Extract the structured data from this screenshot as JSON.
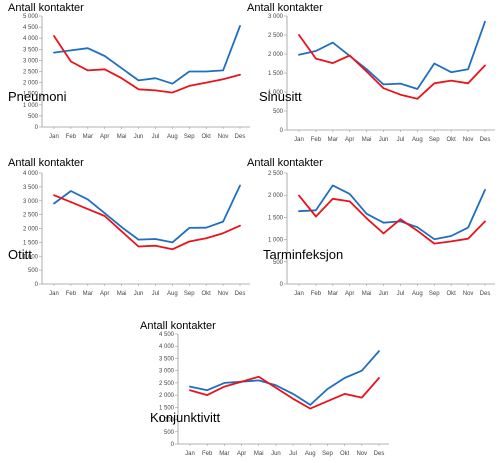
{
  "colors": {
    "series_a": "#1f6fc1",
    "series_b": "#e8141b",
    "axis": "#9a9a9a"
  },
  "chart_data": [
    {
      "type": "line",
      "title": "Pneumoni",
      "ylabel": "Antall kontakter",
      "x": [
        "Jan",
        "Feb",
        "Mar",
        "Apr",
        "Mai",
        "Jun",
        "Jul",
        "Aug",
        "Sep",
        "Okt",
        "Nov",
        "Des"
      ],
      "ylim": [
        0,
        5000
      ],
      "yticks": [
        "0",
        "500",
        "1 000",
        "1 500",
        "2 000",
        "2 500",
        "3 000",
        "3 500",
        "4 000",
        "4 500",
        "5 000"
      ],
      "grid": false,
      "series": [
        {
          "color": "#1f6fc1",
          "values": [
            3350,
            3450,
            3550,
            3200,
            2650,
            2100,
            2200,
            1950,
            2500,
            2500,
            2550,
            4550
          ]
        },
        {
          "color": "#e8141b",
          "values": [
            4100,
            2950,
            2550,
            2600,
            2200,
            1700,
            1650,
            1550,
            1850,
            2000,
            2150,
            2350
          ]
        }
      ]
    },
    {
      "type": "line",
      "title": "Sinusitt",
      "ylabel": "Antall kontakter",
      "x": [
        "Jan",
        "Feb",
        "Mar",
        "Apr",
        "Mai",
        "Jun",
        "Jul",
        "Aug",
        "Sep",
        "Okt",
        "Nov",
        "Des"
      ],
      "ylim": [
        0,
        3000
      ],
      "yticks": [
        "0",
        "500",
        "1 000",
        "1 500",
        "2 000",
        "2 500",
        "3 000"
      ],
      "grid": false,
      "series": [
        {
          "color": "#1f6fc1",
          "values": [
            1980,
            2080,
            2300,
            1950,
            1600,
            1200,
            1220,
            1080,
            1750,
            1520,
            1600,
            2850
          ]
        },
        {
          "color": "#e8141b",
          "values": [
            2500,
            1880,
            1760,
            1960,
            1540,
            1100,
            930,
            820,
            1230,
            1300,
            1230,
            1700
          ]
        }
      ]
    },
    {
      "type": "line",
      "title": "Otitt",
      "ylabel": "Antall kontakter",
      "x": [
        "Jan",
        "Feb",
        "Mar",
        "Apr",
        "Mai",
        "Jun",
        "Jul",
        "Aug",
        "Sep",
        "Okt",
        "Nov",
        "Des"
      ],
      "ylim": [
        0,
        4000
      ],
      "yticks": [
        "0",
        "500",
        "1 000",
        "1 500",
        "2 000",
        "2 500",
        "3 000",
        "3 500",
        "4 000"
      ],
      "grid": false,
      "series": [
        {
          "color": "#1f6fc1",
          "values": [
            2900,
            3350,
            3050,
            2550,
            2050,
            1600,
            1620,
            1500,
            2020,
            2030,
            2250,
            3550
          ]
        },
        {
          "color": "#e8141b",
          "values": [
            3200,
            2950,
            2700,
            2450,
            1900,
            1350,
            1380,
            1250,
            1530,
            1650,
            1830,
            2100
          ]
        }
      ]
    },
    {
      "type": "line",
      "title": "Tarminfeksjon",
      "ylabel": "Antall kontakter",
      "x": [
        "Jan",
        "Feb",
        "Mar",
        "Apr",
        "Mai",
        "Jun",
        "Jul",
        "Aug",
        "Sep",
        "Okt",
        "Nov",
        "Des"
      ],
      "ylim": [
        0,
        2500
      ],
      "yticks": [
        "0",
        "500",
        "1 000",
        "1 500",
        "2 000",
        "2 500"
      ],
      "grid": false,
      "series": [
        {
          "color": "#1f6fc1",
          "values": [
            1640,
            1660,
            2220,
            2030,
            1580,
            1380,
            1410,
            1280,
            1010,
            1080,
            1270,
            2120
          ]
        },
        {
          "color": "#e8141b",
          "values": [
            1990,
            1520,
            1920,
            1860,
            1480,
            1140,
            1460,
            1200,
            910,
            960,
            1020,
            1410
          ]
        }
      ]
    },
    {
      "type": "line",
      "title": "Konjunktivitt",
      "ylabel": "Antall kontakter",
      "x": [
        "Jan",
        "Feb",
        "Mar",
        "Apr",
        "Mai",
        "Jun",
        "Jul",
        "Aug",
        "Sep",
        "Okt",
        "Nov",
        "Des"
      ],
      "ylim": [
        0,
        4500
      ],
      "yticks": [
        "0",
        "500",
        "1 000",
        "1 500",
        "2 000",
        "2 500",
        "3 000",
        "3 500",
        "4 000",
        "4 500"
      ],
      "grid": false,
      "series": [
        {
          "color": "#1f6fc1",
          "values": [
            2350,
            2200,
            2500,
            2550,
            2600,
            2400,
            2050,
            1600,
            2250,
            2700,
            3000,
            3800
          ]
        },
        {
          "color": "#e8141b",
          "values": [
            2200,
            2000,
            2350,
            2550,
            2750,
            2300,
            1850,
            1450,
            1750,
            2050,
            1900,
            2700
          ]
        }
      ]
    }
  ]
}
